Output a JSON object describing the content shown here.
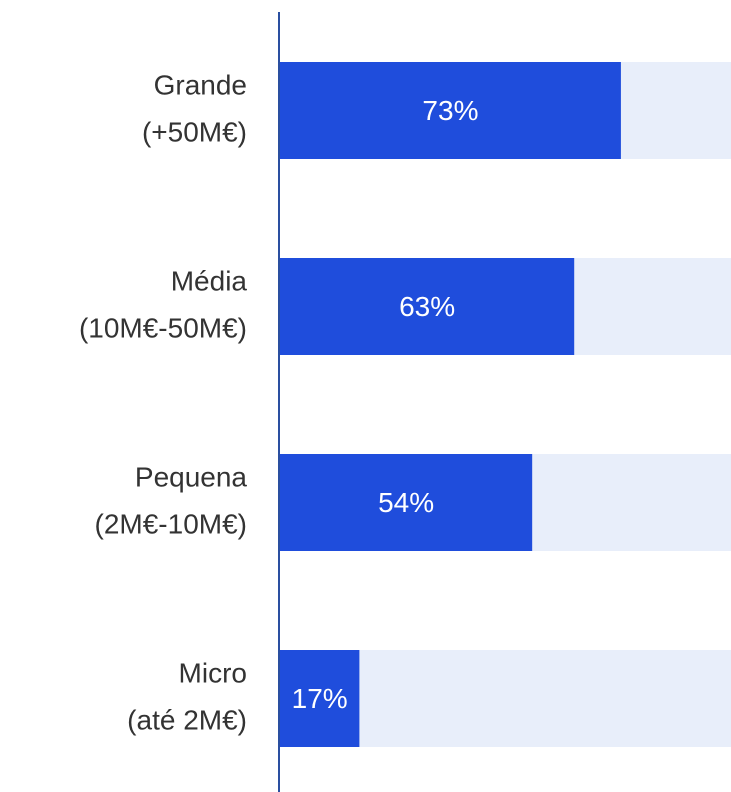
{
  "chart_data": {
    "type": "bar",
    "orientation": "horizontal",
    "categories": [
      [
        "Grande",
        "(+50M€)"
      ],
      [
        "Média",
        "(10M€-50M€)"
      ],
      [
        "Pequena",
        "(2M€-10M€)"
      ],
      [
        "Micro",
        "(até 2M€)"
      ]
    ],
    "values": [
      73,
      63,
      54,
      17
    ],
    "value_labels": [
      "73%",
      "63%",
      "54%",
      "17%"
    ],
    "color": "#1f4ddc",
    "track_color": "#e8eefa",
    "xlim": [
      0,
      100
    ]
  }
}
